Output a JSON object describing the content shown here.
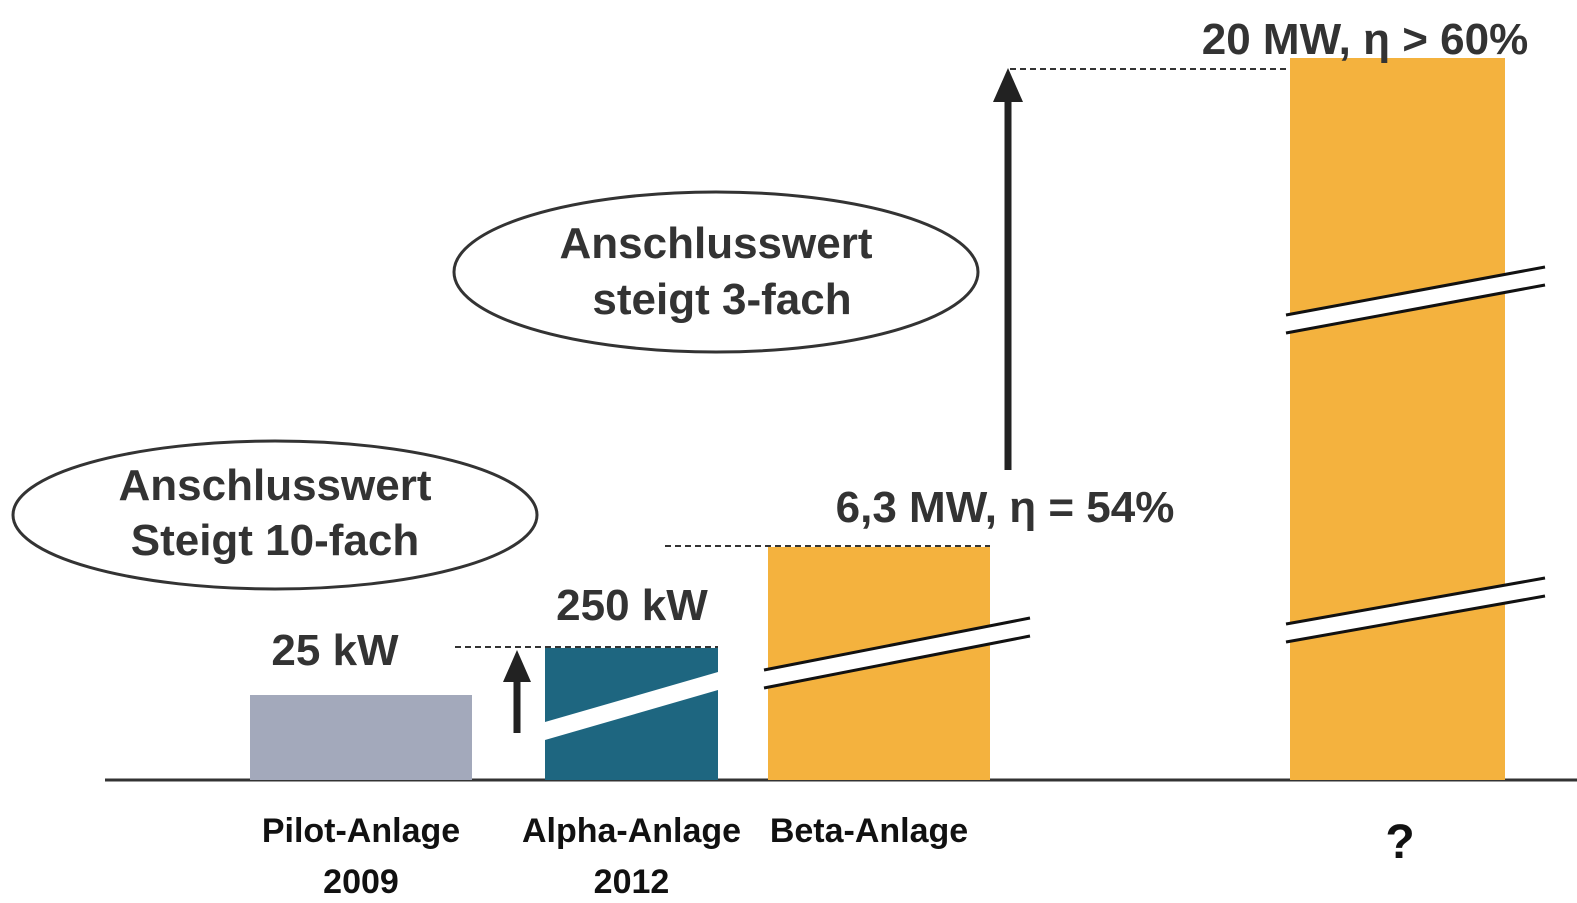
{
  "bars": [
    {
      "label": "Pilot-Anlage",
      "year": "2009",
      "value_label": "25 kW",
      "color": "#a3a9bb"
    },
    {
      "label": "Alpha-Anlage",
      "year": "2012",
      "value_label": "250 kW",
      "color": "#1e6680"
    },
    {
      "label": "Beta-Anlage",
      "value_label": "6,3 MW, η = 54%",
      "color": "#f4b23e"
    },
    {
      "label": "?",
      "value_label": "20 MW, η > 60%",
      "color": "#f4b23e"
    }
  ],
  "callouts": [
    {
      "lines": [
        "Anschlusswert",
        "Steigt 10-fach"
      ]
    },
    {
      "lines": [
        "Anschlusswert",
        "steigt 3-fach"
      ]
    }
  ]
}
